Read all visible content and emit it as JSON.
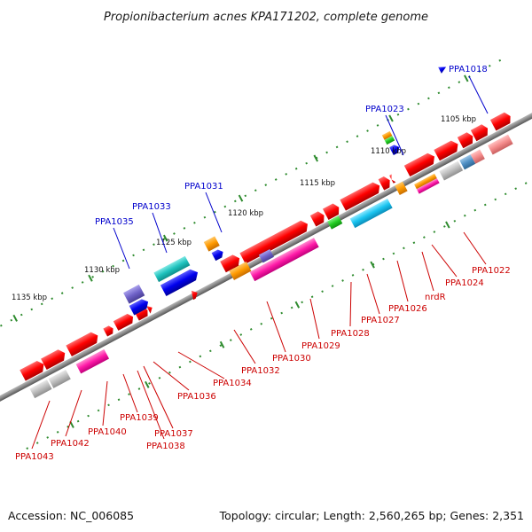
{
  "title": "Propionibacterium acnes KPA171202, complete genome",
  "footer": {
    "accession": "Accession: NC_006085",
    "topology": "Topology: circular; Length: 2,560,265 bp; Genes: 2,351"
  },
  "colors": {
    "backbone": "#7a7a7a",
    "tick": "#2e8b2e",
    "label_top": "#0000cc",
    "label_bottom": "#cc0000"
  },
  "scale_labels": [
    "1105 kbp",
    "1110 kbp",
    "1115 kbp",
    "1120 kbp",
    "1125 kbp",
    "1130 kbp",
    "1135 kbp"
  ],
  "top_labels": [
    "PPA1018",
    "PPA1023",
    "PPA1031",
    "PPA1033",
    "PPA1035"
  ],
  "bottom_labels": [
    "PPA1022",
    "PPA1024",
    "nrdR",
    "PPA1026",
    "PPA1027",
    "PPA1028",
    "PPA1029",
    "PPA1030",
    "PPA1032",
    "PPA1034",
    "PPA1036",
    "PPA1037",
    "PPA1038",
    "PPA1039",
    "PPA1040",
    "PPA1042",
    "PPA1043"
  ],
  "legend": {
    "feature_color_names": [
      "red",
      "magenta",
      "orange",
      "green",
      "cyan",
      "teal",
      "blue",
      "slate-blue",
      "grey",
      "pink",
      "steel-blue"
    ]
  }
}
